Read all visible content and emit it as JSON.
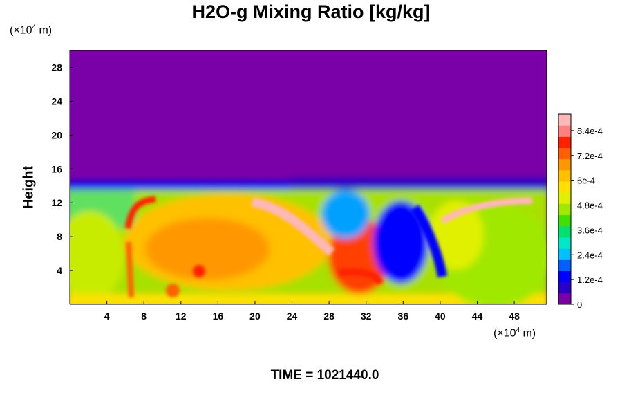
{
  "chart_data": {
    "type": "heatmap",
    "title": "H2O-g Mixing Ratio [kg/kg]",
    "ylabel": "Height",
    "x_unit": {
      "prefix": "(×10",
      "exp": "4",
      "suffix": " m)"
    },
    "y_unit": {
      "prefix": "(×10",
      "exp": "4",
      "suffix": " m)"
    },
    "xlim": [
      0,
      51.5
    ],
    "ylim": [
      0,
      30
    ],
    "x_ticks": [
      4,
      8,
      12,
      16,
      20,
      24,
      28,
      32,
      36,
      40,
      44,
      48
    ],
    "y_ticks": [
      4,
      8,
      12,
      16,
      20,
      24,
      28
    ],
    "colorbar": {
      "range": [
        0,
        0.00092
      ],
      "tick_values": [
        0,
        0.00012,
        0.00024,
        0.00036,
        0.00048,
        0.0006,
        0.00072,
        0.00084
      ],
      "tick_labels": [
        "0",
        "1.2e-4",
        "2.4e-4",
        "3.6e-4",
        "4.8e-4",
        "6e-4",
        "7.2e-4",
        "8.4e-4"
      ]
    },
    "time_label": "TIME = 1021440.0"
  },
  "colors": {
    "background_field": "#7a00a8",
    "palette": [
      "#7a00a8",
      "#2a00c8",
      "#0000ff",
      "#0060ff",
      "#00c0ff",
      "#00e8c8",
      "#00e070",
      "#40e000",
      "#a0e800",
      "#e0f000",
      "#ffe000",
      "#ffc000",
      "#ff9800",
      "#ff6000",
      "#ff2000",
      "#ff8080",
      "#ffb8b8"
    ]
  }
}
